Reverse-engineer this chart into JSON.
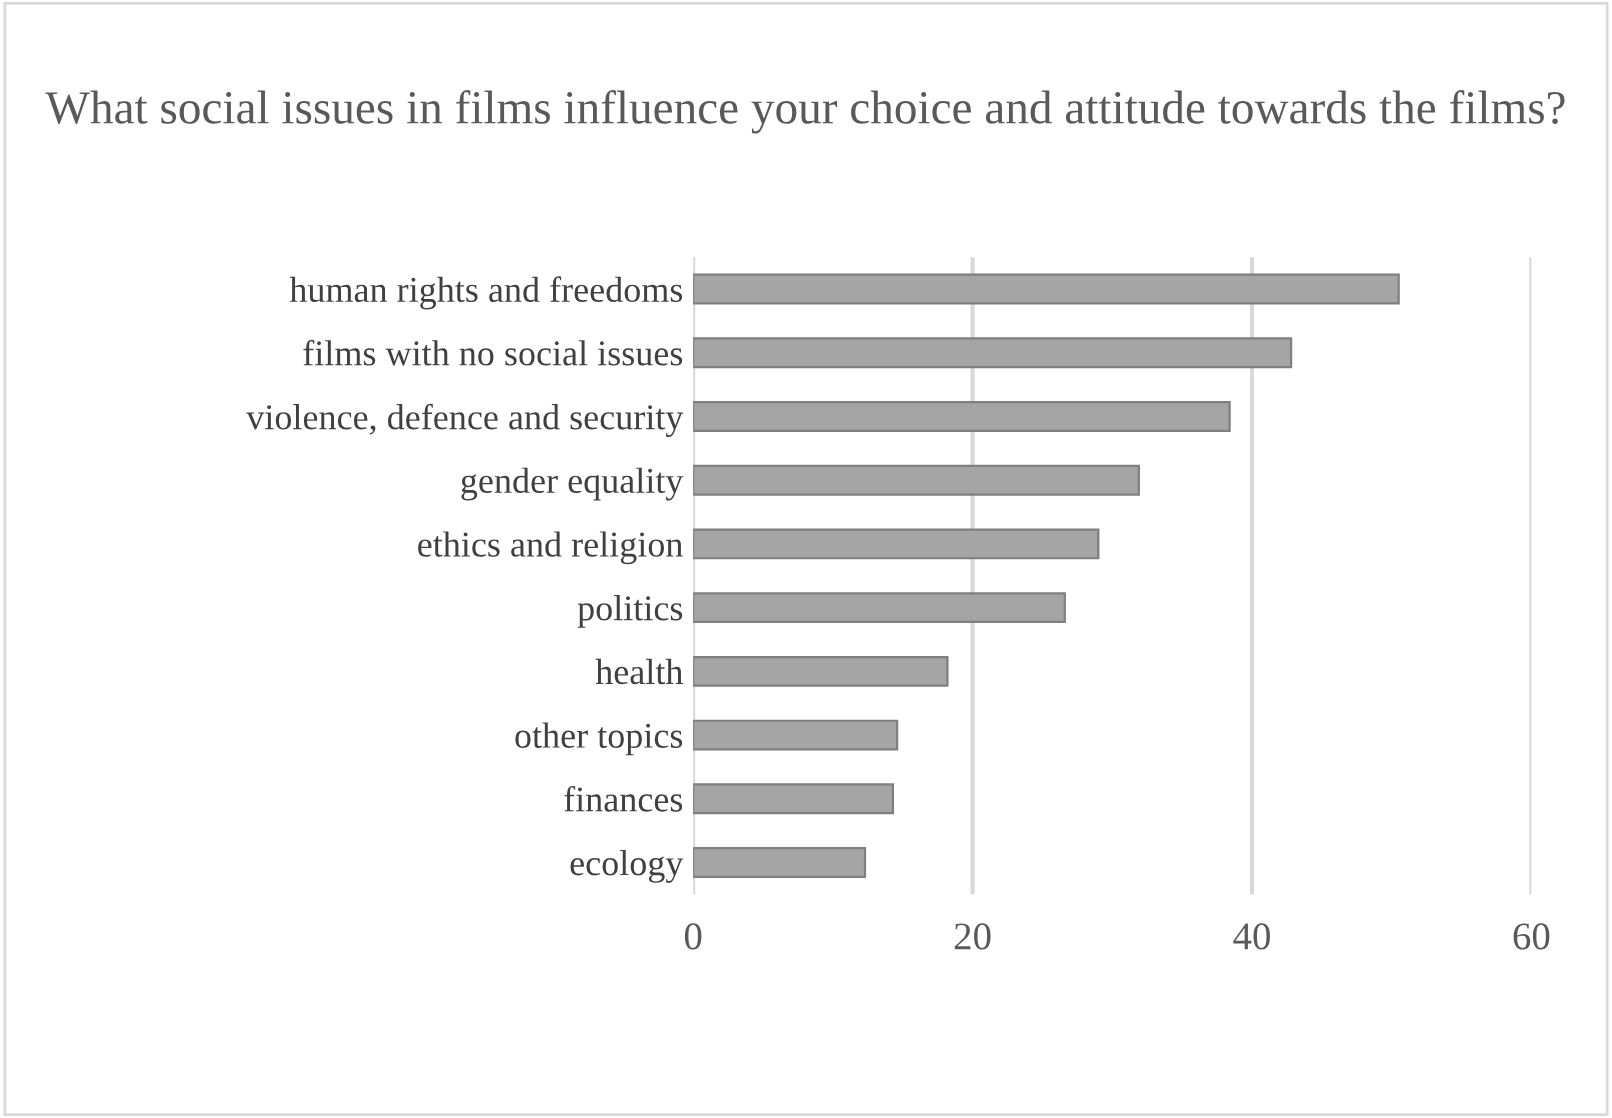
{
  "chart_data": {
    "type": "bar",
    "orientation": "horizontal",
    "title": "What social issues in films influence your choice and attitude towards the films?",
    "categories": [
      "human rights and freedoms",
      "films with no social issues",
      "violence, defence and security",
      "gender equality",
      "ethics and religion",
      "politics",
      "health",
      "other topics",
      "finances",
      "ecology"
    ],
    "values": [
      50.5,
      42.8,
      38.4,
      31.9,
      29,
      26.6,
      18.2,
      14.6,
      14.3,
      12.3
    ],
    "color": "#a5a5a5",
    "xlim": [
      0,
      60
    ],
    "xticks": [
      0,
      20,
      40,
      60
    ],
    "grid": "x"
  }
}
